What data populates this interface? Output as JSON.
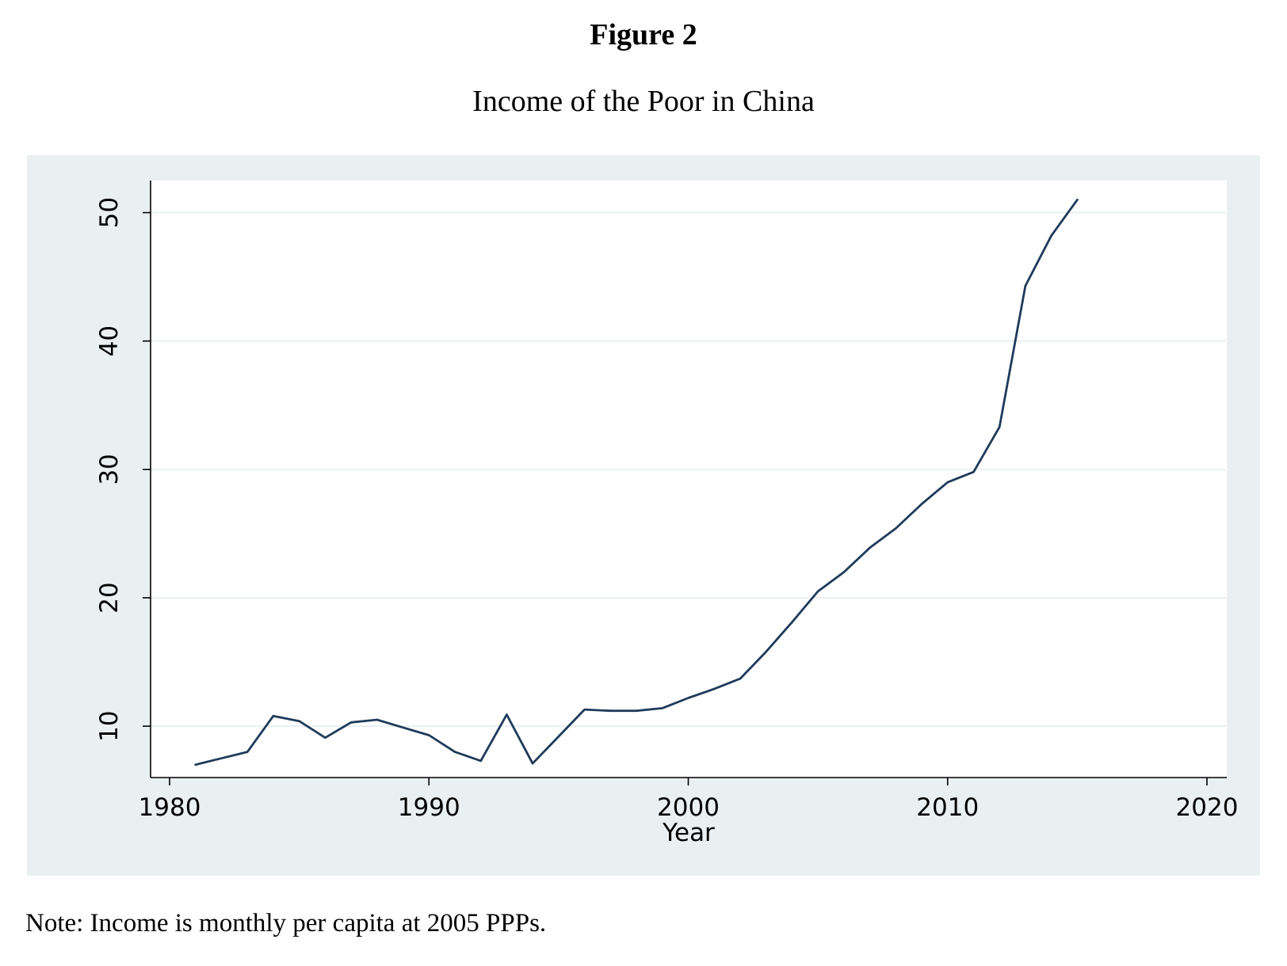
{
  "figure": {
    "label": "Figure 2",
    "title": "Income of the Poor in China",
    "note": "Note: Income is monthly per capita at 2005 PPPs."
  },
  "colors": {
    "outer_background": "#eaf0f2",
    "plot_background": "#ffffff",
    "grid": "#eaf0f2",
    "line": "#1f3b5a"
  },
  "chart_data": {
    "type": "line",
    "title": "Income of the Poor in China",
    "xlabel": "Year",
    "ylabel": "",
    "xlim": [
      1980,
      2020
    ],
    "ylim": [
      6,
      52.5
    ],
    "xticks": [
      1980,
      1990,
      2000,
      2010,
      2020
    ],
    "yticks": [
      10,
      20,
      30,
      40,
      50
    ],
    "grid": true,
    "legend": "none",
    "series": [
      {
        "x": [
          1981,
          1982,
          1983,
          1984,
          1985,
          1986,
          1987,
          1988,
          1989,
          1990,
          1991,
          1992,
          1993,
          1994,
          1995,
          1996,
          1997,
          1998,
          1999,
          2000,
          2001,
          2002,
          2003,
          2004,
          2005,
          2006,
          2007,
          2008,
          2009,
          2010,
          2011,
          2012,
          2013,
          2014,
          2015
        ],
        "y": [
          7.0,
          7.5,
          8.0,
          10.8,
          10.4,
          9.1,
          10.3,
          10.5,
          9.9,
          9.3,
          8.0,
          7.3,
          10.9,
          7.1,
          9.2,
          11.3,
          11.2,
          11.2,
          11.4,
          12.2,
          12.9,
          13.7,
          15.8,
          18.1,
          20.5,
          22.0,
          23.9,
          25.4,
          27.3,
          29.0,
          29.8,
          33.3,
          44.3,
          48.2,
          51.0
        ]
      }
    ]
  }
}
